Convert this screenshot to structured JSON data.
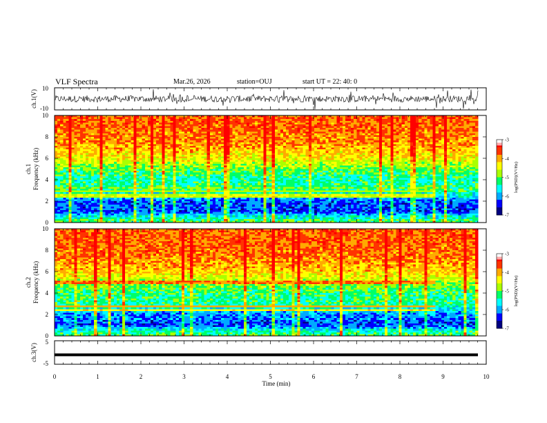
{
  "header": {
    "title": "VLF Spectra",
    "date": "Mar.26, 2026",
    "station": "station=OUJ",
    "start_ut": "start UT =  22: 40: 0"
  },
  "colors": {
    "scale": [
      "#000080",
      "#0000ff",
      "#00aaff",
      "#00ffff",
      "#00ff66",
      "#aaff00",
      "#ffff00",
      "#ffaa00",
      "#ff3300",
      "#ff0000",
      "#ffffff"
    ],
    "trace": "#000000"
  },
  "chart_data": [
    {
      "type": "line",
      "panel": "ch1-waveform",
      "ylabel": "ch.1(V)",
      "ylim": [
        -10,
        10
      ],
      "y_tick_labels": [
        "10",
        "-10"
      ],
      "xlim": [
        0,
        10
      ],
      "series": [
        {
          "amplitude_range": [
            -3,
            3
          ]
        }
      ]
    },
    {
      "type": "heatmap",
      "panel": "ch1-spectrogram",
      "ylabel": "ch.1\nFrequency (kHz)",
      "ylabel_lines": [
        "ch.1",
        "Frequency (kHz)"
      ],
      "y_tick_labels": [
        "0",
        "2",
        "4",
        "6",
        "8",
        "10"
      ],
      "ylim": [
        0,
        10
      ],
      "xlim": [
        0,
        9.85
      ],
      "colorbar": {
        "label": "log(PSD)(V²/Hz)",
        "range": [
          -7,
          -3
        ],
        "tick_labels": [
          "-3",
          "-4",
          "-5",
          "-6",
          "-7"
        ]
      },
      "profile": [
        {
          "freq": 0.0,
          "level": -5.0
        },
        {
          "freq": 0.5,
          "level": -5.5
        },
        {
          "freq": 1.0,
          "level": -6.3
        },
        {
          "freq": 2.0,
          "level": -6.2
        },
        {
          "freq": 2.6,
          "level": -5.6
        },
        {
          "freq": 3.0,
          "level": -5.2
        },
        {
          "freq": 4.0,
          "level": -5.4
        },
        {
          "freq": 5.0,
          "level": -5.0
        },
        {
          "freq": 6.0,
          "level": -4.4
        },
        {
          "freq": 7.5,
          "level": -3.9
        },
        {
          "freq": 10.0,
          "level": -3.7
        }
      ],
      "lines": [
        {
          "freq": 2.5,
          "level": -4.6
        },
        {
          "freq": 2.9,
          "level": -4.8
        },
        {
          "freq": 3.2,
          "level": -5.0
        }
      ]
    },
    {
      "type": "heatmap",
      "panel": "ch2-spectrogram",
      "ylabel": "ch.2\nFrequency (kHz)",
      "ylabel_lines": [
        "ch.2",
        "Frequency (kHz)"
      ],
      "y_tick_labels": [
        "0",
        "2",
        "4",
        "6",
        "8",
        "10"
      ],
      "ylim": [
        0,
        10
      ],
      "xlim": [
        0,
        9.85
      ],
      "colorbar": {
        "label": "log(PSD)(V²/Hz)",
        "range": [
          -7,
          -3
        ],
        "tick_labels": [
          "-3",
          "-4",
          "-5",
          "-6",
          "-7"
        ]
      },
      "profile": [
        {
          "freq": 0.0,
          "level": -5.0
        },
        {
          "freq": 0.5,
          "level": -5.5
        },
        {
          "freq": 1.0,
          "level": -6.3
        },
        {
          "freq": 2.0,
          "level": -6.0
        },
        {
          "freq": 3.0,
          "level": -5.3
        },
        {
          "freq": 4.0,
          "level": -5.2
        },
        {
          "freq": 5.0,
          "level": -4.8
        },
        {
          "freq": 6.0,
          "level": -4.2
        },
        {
          "freq": 7.5,
          "level": -3.8
        },
        {
          "freq": 10.0,
          "level": -3.7
        }
      ],
      "lines": [
        {
          "freq": 2.4,
          "level": -4.3
        },
        {
          "freq": 2.7,
          "level": -4.0
        },
        {
          "freq": 5.0,
          "level": -3.8
        }
      ]
    },
    {
      "type": "line",
      "panel": "ch3-waveform",
      "ylabel": "ch.3(V)",
      "ylim": [
        -5,
        5
      ],
      "y_tick_labels": [
        "5",
        "-5"
      ],
      "xlim": [
        0,
        10
      ],
      "series": [
        {
          "constant_value": -1.0
        }
      ]
    }
  ],
  "x_axis": {
    "label": "Time (min)",
    "range": [
      0,
      10
    ],
    "tick_labels": [
      "0",
      "1",
      "2",
      "3",
      "4",
      "5",
      "6",
      "7",
      "8",
      "9",
      "10"
    ]
  }
}
